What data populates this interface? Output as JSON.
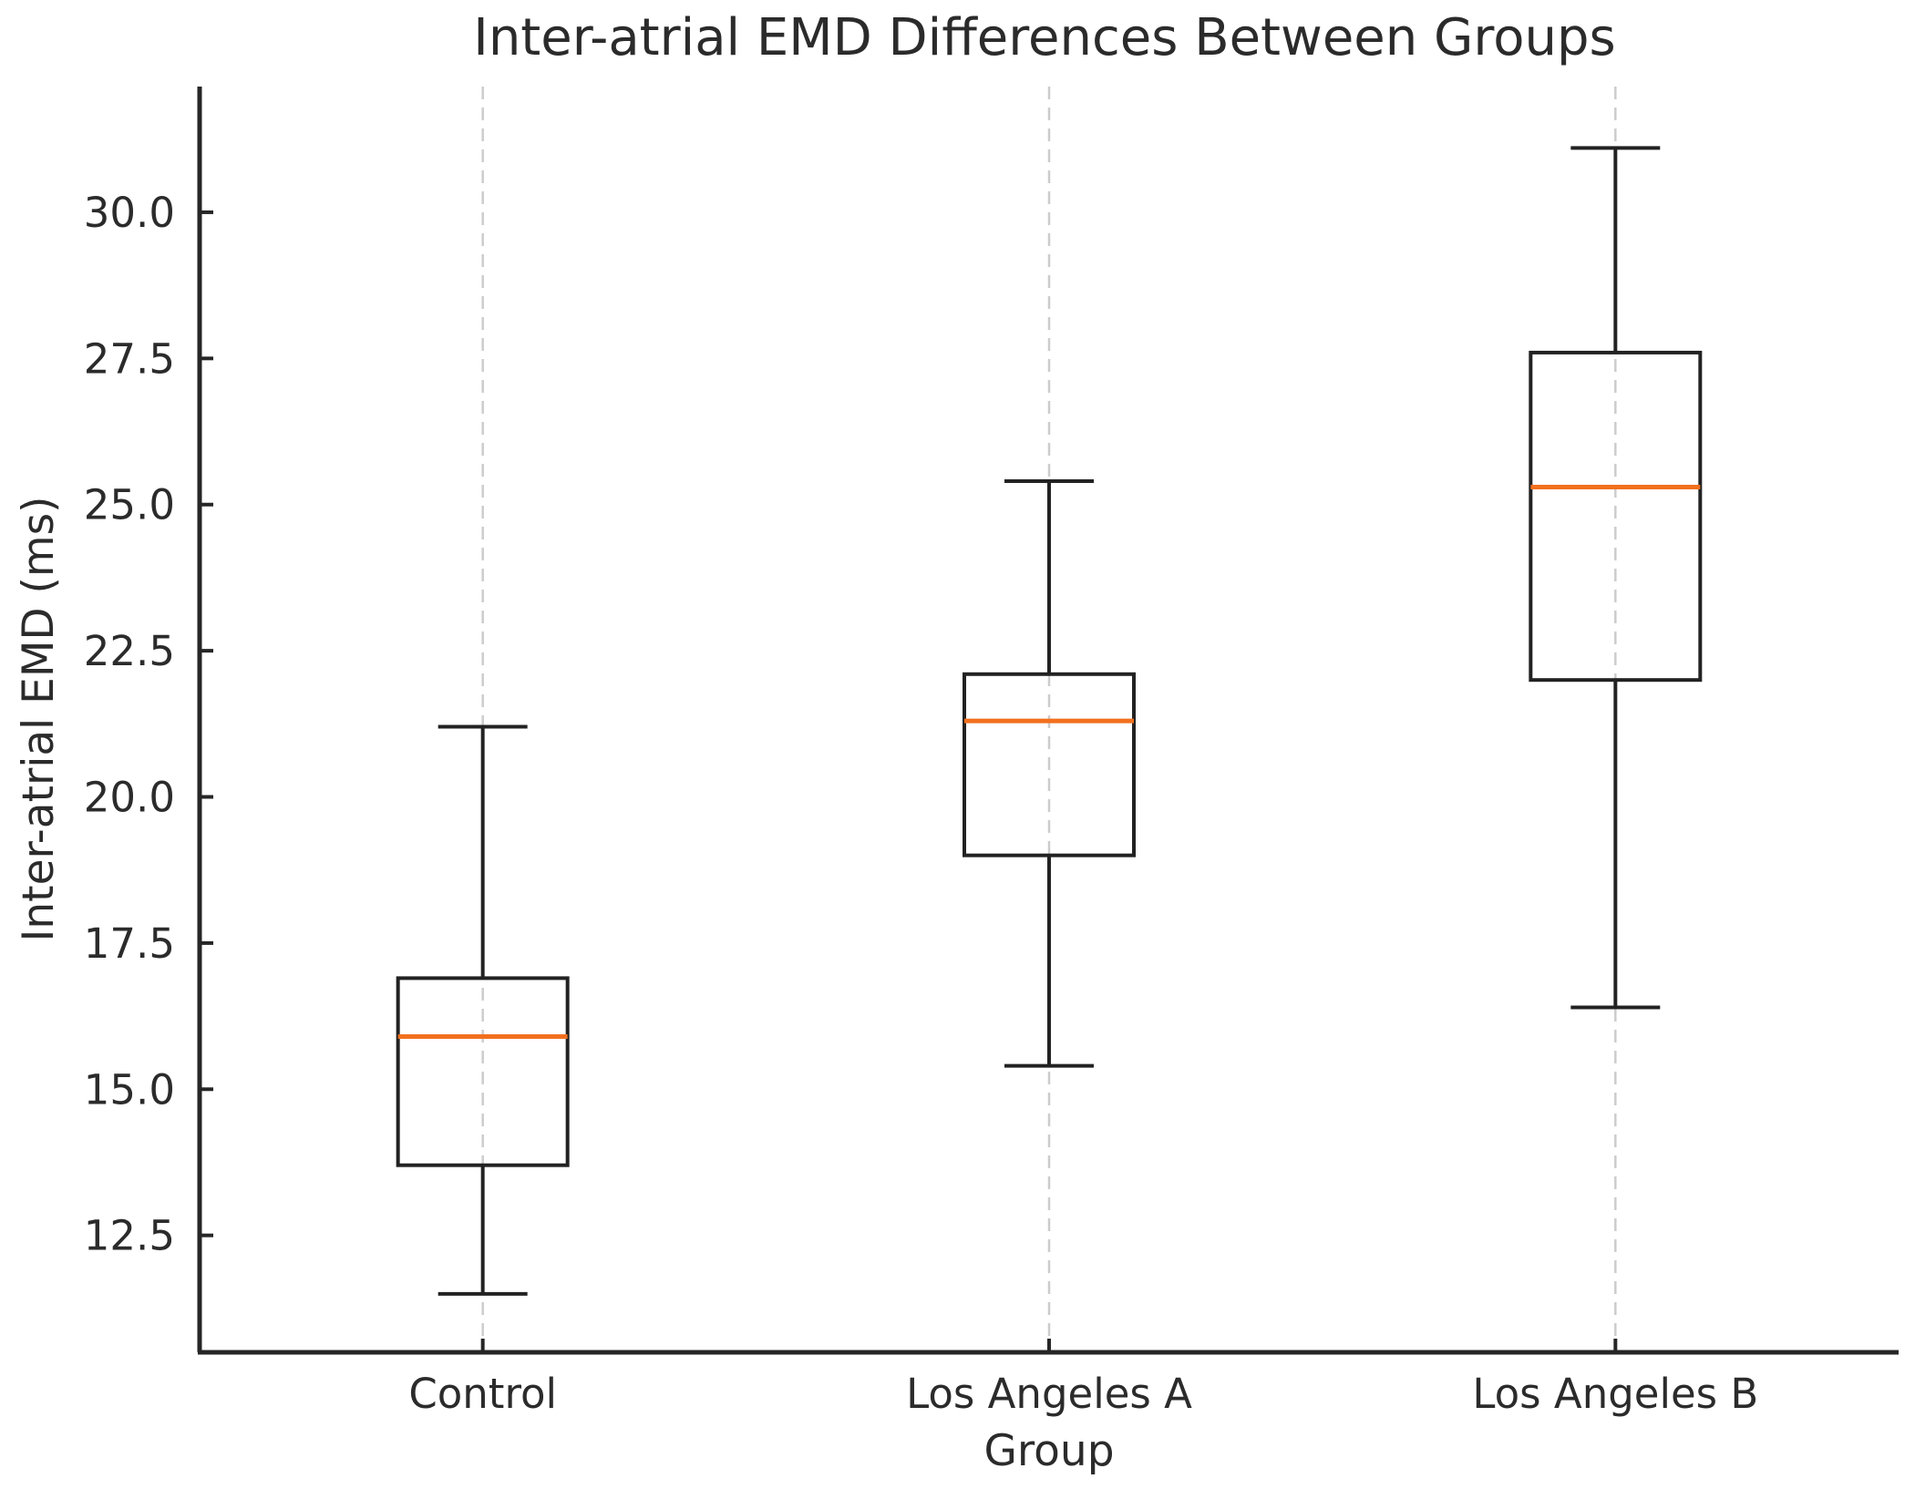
{
  "chart_data": {
    "type": "boxplot",
    "title": "Inter-atrial EMD Differences Between Groups",
    "xlabel": "Group",
    "ylabel": "Inter-atrial EMD (ms)",
    "categories": [
      "Control",
      "Los Angeles A",
      "Los Angeles B"
    ],
    "y_ticks": [
      12.5,
      15.0,
      17.5,
      20.0,
      22.5,
      25.0,
      27.5,
      30.0
    ],
    "ylim": [
      10.5,
      32.15
    ],
    "grid": "vertical dashed gridline at each category center",
    "legend": "none",
    "series": [
      {
        "name": "Control",
        "whisker_low": 11.5,
        "q1": 13.7,
        "median": 15.9,
        "q3": 16.9,
        "whisker_high": 21.2
      },
      {
        "name": "Los Angeles A",
        "whisker_low": 15.4,
        "q1": 19.0,
        "median": 21.3,
        "q3": 22.1,
        "whisker_high": 25.4
      },
      {
        "name": "Los Angeles B",
        "whisker_low": 16.4,
        "q1": 22.0,
        "median": 25.3,
        "q3": 27.6,
        "whisker_high": 31.1
      }
    ],
    "colors": {
      "box_line": "#222222",
      "median": "#f2701d",
      "grid": "#cccccc",
      "spine": "#262626",
      "text": "#2b2b2b",
      "background": "#ffffff"
    }
  }
}
